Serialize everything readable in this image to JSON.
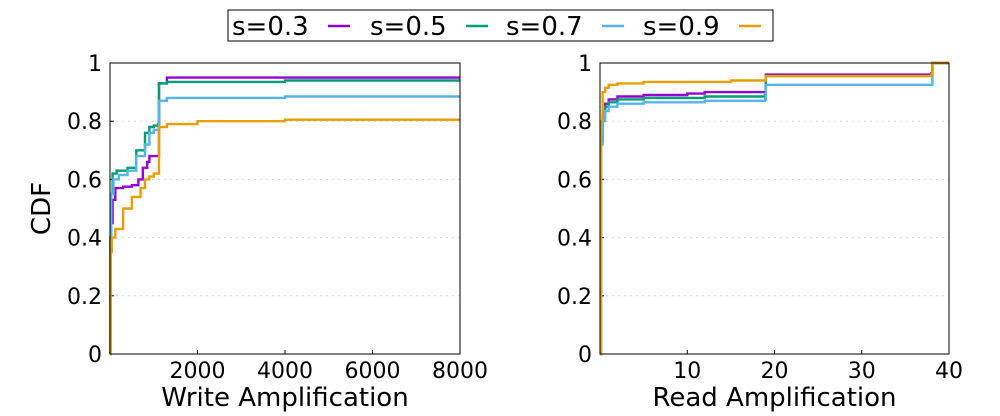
{
  "chart_data": [
    {
      "type": "line",
      "xlabel": "Write Amplification",
      "ylabel": "CDF",
      "xlim": [
        0,
        8000
      ],
      "ylim": [
        0,
        1
      ],
      "xticks": [
        2000,
        4000,
        6000,
        8000
      ],
      "xtick_labels": [
        "2000",
        "4000",
        "6000",
        "8000"
      ],
      "yticks": [
        0,
        0.2,
        0.4,
        0.6,
        0.8,
        1
      ],
      "ytick_labels": [
        "0",
        "0.2",
        "0.4",
        "0.6",
        "0.8",
        "1"
      ],
      "grid": "horizontal dotted",
      "series": [
        {
          "name": "s=0.3",
          "color": "#9400d3",
          "x": [
            0,
            10,
            30,
            60,
            120,
            300,
            500,
            650,
            750,
            850,
            900,
            1000,
            1100,
            1120,
            1300,
            4000,
            8000
          ],
          "y": [
            0,
            0.35,
            0.45,
            0.53,
            0.57,
            0.575,
            0.58,
            0.6,
            0.64,
            0.66,
            0.68,
            0.68,
            0.68,
            0.93,
            0.95,
            0.95,
            0.95
          ]
        },
        {
          "name": "s=0.5",
          "color": "#009e73",
          "x": [
            0,
            10,
            30,
            60,
            150,
            400,
            600,
            800,
            900,
            1000,
            1100,
            1120,
            1300,
            4000,
            8000
          ],
          "y": [
            0,
            0.4,
            0.55,
            0.62,
            0.63,
            0.64,
            0.7,
            0.76,
            0.78,
            0.785,
            0.79,
            0.93,
            0.935,
            0.94,
            0.94
          ]
        },
        {
          "name": "s=0.7",
          "color": "#56b4e9",
          "x": [
            0,
            10,
            30,
            80,
            200,
            400,
            600,
            800,
            900,
            1000,
            1100,
            1120,
            1300,
            4000,
            8000
          ],
          "y": [
            0,
            0.4,
            0.55,
            0.6,
            0.615,
            0.63,
            0.68,
            0.72,
            0.76,
            0.77,
            0.77,
            0.87,
            0.88,
            0.885,
            0.885
          ]
        },
        {
          "name": "s=0.9",
          "color": "#e69f00",
          "x": [
            0,
            10,
            40,
            120,
            300,
            500,
            700,
            800,
            900,
            1000,
            1100,
            1120,
            1300,
            2000,
            4000,
            8000
          ],
          "y": [
            0,
            0.35,
            0.4,
            0.43,
            0.5,
            0.54,
            0.57,
            0.6,
            0.61,
            0.62,
            0.62,
            0.78,
            0.79,
            0.8,
            0.805,
            0.805
          ]
        }
      ]
    },
    {
      "type": "line",
      "xlabel": "Read Amplification",
      "ylabel": "",
      "xlim": [
        0,
        40
      ],
      "ylim": [
        0,
        1
      ],
      "xticks": [
        10,
        20,
        30,
        40
      ],
      "xtick_labels": [
        "10",
        "20",
        "30",
        "40"
      ],
      "yticks": [
        0,
        0.2,
        0.4,
        0.6,
        0.8,
        1
      ],
      "ytick_labels": [
        "0",
        "0.2",
        "0.4",
        "0.6",
        "0.8",
        "1"
      ],
      "grid": "horizontal dotted",
      "series": [
        {
          "name": "s=0.3",
          "color": "#9400d3",
          "x": [
            0,
            0.1,
            0.3,
            0.6,
            1,
            2,
            5,
            10,
            12,
            18.9,
            19,
            38,
            38.1,
            40
          ],
          "y": [
            0,
            0.73,
            0.83,
            0.86,
            0.875,
            0.885,
            0.89,
            0.895,
            0.9,
            0.9,
            0.96,
            0.965,
            1,
            1
          ]
        },
        {
          "name": "s=0.5",
          "color": "#009e73",
          "x": [
            0,
            0.1,
            0.3,
            0.6,
            1,
            2,
            5,
            12,
            18.9,
            19,
            38,
            38.1,
            40
          ],
          "y": [
            0,
            0.73,
            0.82,
            0.85,
            0.865,
            0.875,
            0.88,
            0.885,
            0.89,
            0.955,
            0.96,
            1,
            1
          ]
        },
        {
          "name": "s=0.7",
          "color": "#56b4e9",
          "x": [
            0,
            0.1,
            0.3,
            0.6,
            1,
            2,
            5,
            12,
            18.9,
            19,
            38,
            38.1,
            40
          ],
          "y": [
            0,
            0.72,
            0.8,
            0.835,
            0.85,
            0.86,
            0.865,
            0.87,
            0.875,
            0.925,
            0.925,
            1,
            1
          ]
        },
        {
          "name": "s=0.9",
          "color": "#e69f00",
          "x": [
            0,
            0.1,
            0.3,
            0.6,
            1,
            2,
            5,
            15,
            18.9,
            19,
            38,
            38.1,
            40
          ],
          "y": [
            0,
            0.8,
            0.9,
            0.915,
            0.925,
            0.93,
            0.935,
            0.94,
            0.94,
            0.955,
            0.96,
            1,
            1
          ]
        }
      ]
    }
  ]
}
